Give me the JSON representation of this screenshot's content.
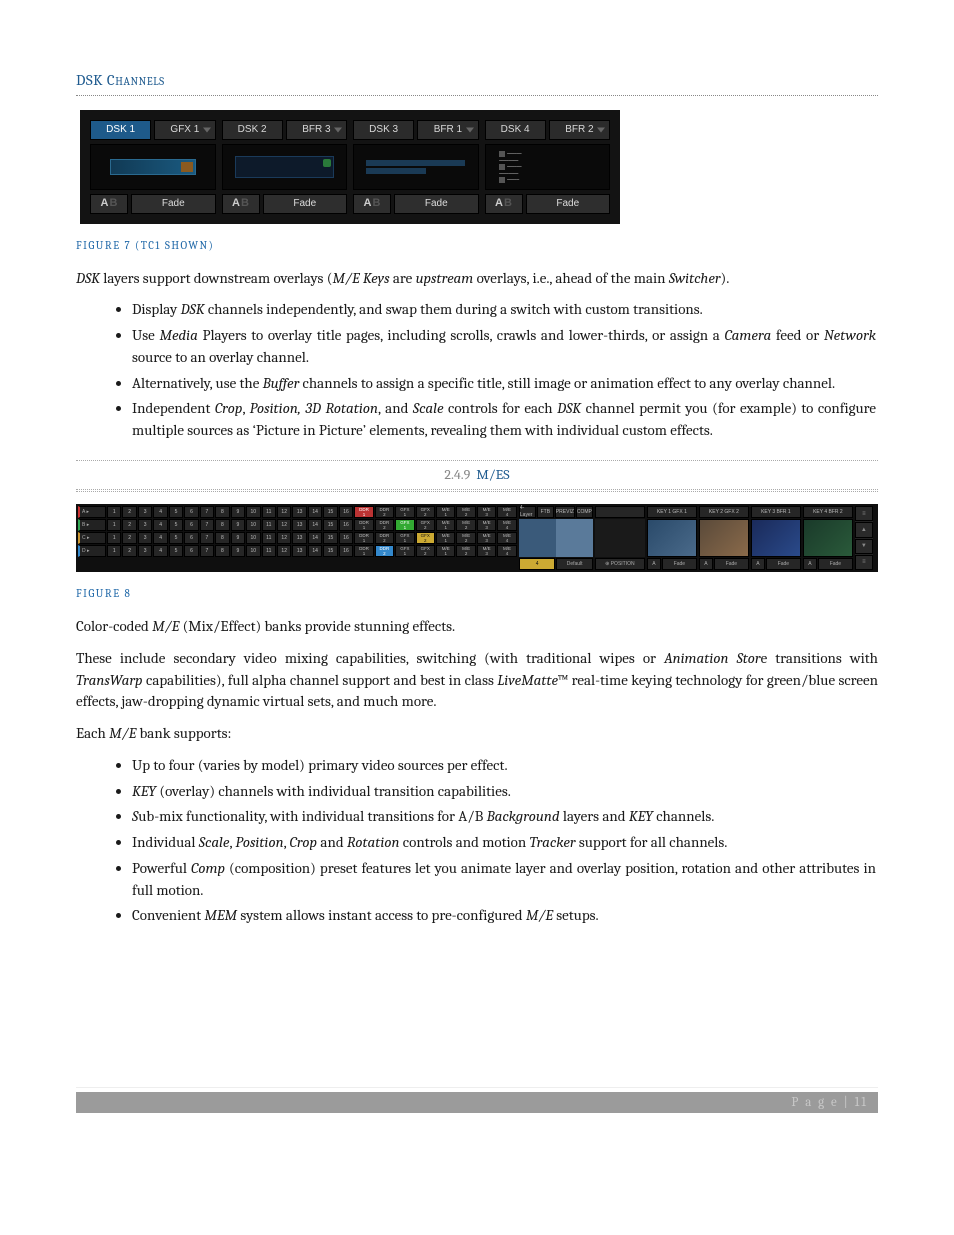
{
  "sectionA": {
    "title": "DSK Channels"
  },
  "fig7": {
    "caption": "FIGURE 7  (TC1 SHOWN)",
    "channels": [
      {
        "label": "DSK 1",
        "active": true,
        "source": "GFX 1",
        "fade": "Fade",
        "thumb": "gfx"
      },
      {
        "label": "DSK 2",
        "active": false,
        "source": "BFR 3",
        "fade": "Fade",
        "thumb": "title"
      },
      {
        "label": "DSK 3",
        "active": false,
        "source": "BFR 1",
        "fade": "Fade",
        "thumb": "lower"
      },
      {
        "label": "DSK 4",
        "active": false,
        "source": "BFR 2",
        "fade": "Fade",
        "thumb": "text"
      }
    ],
    "colors": {
      "panel_bg": "#131313",
      "btn_bg": "#2b2b2b",
      "active_bg": "#1e5a8a",
      "text": "#d8d8d8"
    }
  },
  "para1": {
    "pre": "DSK",
    "mid1": " layers support downstream overlays (",
    "em1": "M/E Keys",
    "mid2": " are ",
    "em2": "upstream",
    "mid3": " overlays, i.e., ahead of the main ",
    "em3": "Switcher",
    "end": ")."
  },
  "listA": {
    "i0": {
      "a": "Display ",
      "em": "DSK",
      "b": " channels independently, and swap them during a switch with custom transitions."
    },
    "i1": {
      "a": "Use ",
      "em": "Media",
      "b": " Players to overlay title pages, including scrolls, crawls and lower-thirds, or assign a ",
      "em2": "Camera",
      "c": " feed or ",
      "em3": "Network",
      "d": " source to an overlay channel."
    },
    "i2": {
      "a": "Alternatively, use the ",
      "em": "Buffer",
      "b": " channels to assign a specific title, still image or animation effect to any overlay channel."
    },
    "i3": {
      "a": "Independent ",
      "em": "Crop",
      "b": ", ",
      "em2": "Position, 3D Rotation",
      "c": ", and ",
      "em3": "Scale",
      "d": " controls for each ",
      "em4": "DSK",
      "e": " channel permit you (for example) to configure multiple sources as ‘Picture in Picture’ elements, revealing them with individual custom effects."
    }
  },
  "sectionB": {
    "num": "2.4.9",
    "txt": "M/ES"
  },
  "fig8": {
    "caption": "FIGURE 8",
    "row_labels": [
      "A",
      "B",
      "C",
      "D"
    ],
    "numbered_cols": [
      "1",
      "2",
      "3",
      "4",
      "5",
      "6",
      "7",
      "8",
      "9",
      "10",
      "11",
      "12",
      "13",
      "14",
      "15",
      "16"
    ],
    "wide_cols": [
      "DDR 1",
      "DDR 2",
      "GFX 1",
      "GFX 2",
      "M/E 1",
      "M/E 2",
      "M/E 3",
      "M/E 4"
    ],
    "row_selected": {
      "A": 16,
      "B": -1,
      "C": -1,
      "D": -1
    },
    "wide_selected": {
      "A": 0,
      "B": 2,
      "C": 3,
      "D": 1
    },
    "preview_head": [
      "4-Layer",
      "FTB",
      "PREVIZ",
      "COMP"
    ],
    "preview_foot_l": "4",
    "preview_foot_r": "Default",
    "keys": [
      {
        "head": "KEY 1  GFX 1",
        "foot": "Fade"
      },
      {
        "head": "KEY 2  GFX 2",
        "foot": "Fade"
      },
      {
        "head": "KEY 3  BFR 1",
        "foot": "Fade"
      },
      {
        "head": "KEY 4  BFR 2",
        "foot": "Fade"
      }
    ],
    "position_label": "POSITION",
    "colors": {
      "bg": "#0f0f0f",
      "btn": "#262626",
      "txt": "#bbbbbb",
      "rowA": "#cc3333",
      "rowB": "#33aa55",
      "rowC": "#cc9933",
      "rowD": "#3388cc"
    }
  },
  "para2": {
    "a": "Color-coded ",
    "em": "M/E",
    "b": " (Mix/Effect) banks provide stunning effects."
  },
  "para3": {
    "a": "These include secondary video mixing capabilities, switching (with traditional wipes or ",
    "em1": "Animation Stor",
    "b": "e transitions with ",
    "em2": "TransWarp",
    "c": " capabilities), full alpha channel support and best in class ",
    "em3": "LiveMatte",
    "d": "™ real-time keying technology for green/blue screen effects, jaw-dropping dynamic virtual sets, and much more."
  },
  "para4": {
    "a": "Each ",
    "em": "M/E",
    "b": " bank supports:"
  },
  "listB": {
    "i0": "Up to four (varies by model) primary video sources per effect.",
    "i1": {
      "em": "KEY",
      "b": " (overlay) channels with individual transition capabilities."
    },
    "i2": {
      "em0": "S",
      "a": "ub-mix functionality, with individual transitions for A/B ",
      "em": "Background",
      "b": " layers and ",
      "em2": "KEY",
      "c": " channels."
    },
    "i3": {
      "a": "Individual ",
      "em": "Scale",
      "b": ", ",
      "em2": "Position",
      "c": ", ",
      "em3": "Crop",
      "d": " and ",
      "em4": "Rotation",
      "e": " controls and motion ",
      "em5": "Tracker",
      "f": " support for all channels."
    },
    "i4": {
      "a": "Powerful ",
      "em": "Comp",
      "b": " (composition) preset features let you animate layer and overlay position, rotation and other attributes in full motion."
    },
    "i5": {
      "a": "Convenient ",
      "em": "MEM",
      "b": " system allows instant access to pre-configured ",
      "em2": "M/E",
      "c": " setups."
    }
  },
  "footer": {
    "label": "P a g e",
    "sep": " | ",
    "num": "11"
  }
}
